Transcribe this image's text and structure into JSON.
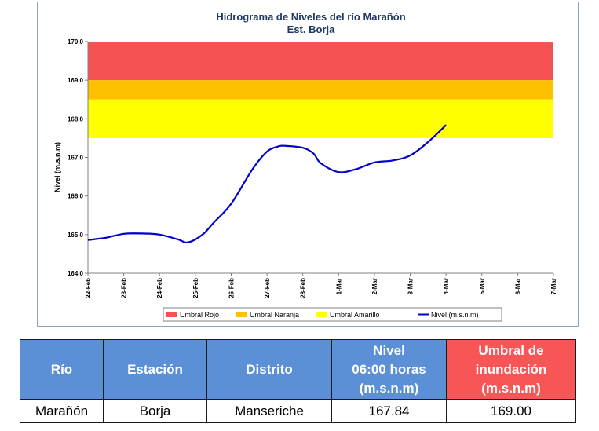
{
  "chart_data": {
    "type": "line",
    "title": "Hidrograma de Niveles del río Marañón",
    "subtitle": "Est. Borja",
    "ylabel": "Nivel (m.s.n.m)",
    "xlabel": "",
    "ylim": [
      164.0,
      170.0
    ],
    "yticks": [
      "164.0",
      "165.0",
      "166.0",
      "167.0",
      "168.0",
      "169.0",
      "170.0"
    ],
    "ytick_values": [
      164,
      165,
      166,
      167,
      168,
      169,
      170
    ],
    "categories": [
      "22-Feb",
      "23-Feb",
      "24-Feb",
      "25-Feb",
      "26-Feb",
      "27-Feb",
      "28-Feb",
      "1-Mar",
      "2-Mar",
      "3-Mar",
      "4-Mar",
      "5-Mar",
      "6-Mar",
      "7-Mar"
    ],
    "bands": [
      {
        "name": "Umbral Rojo",
        "from": 169.0,
        "to": 170.0,
        "color": "#f55353"
      },
      {
        "name": "Umbral Naranja",
        "from": 168.5,
        "to": 169.0,
        "color": "#ffc000"
      },
      {
        "name": "Umbral Amarillo",
        "from": 167.5,
        "to": 168.5,
        "color": "#ffff00"
      }
    ],
    "series": [
      {
        "name": "Nivel (m.s.n.m)",
        "color": "#0000cc",
        "x": [
          0,
          0.5,
          1,
          1.5,
          2,
          2.5,
          2.8,
          3.2,
          3.5,
          4,
          4.6,
          5,
          5.3,
          5.5,
          6,
          6.3,
          6.5,
          7,
          7.5,
          8,
          8.5,
          9,
          9.5,
          10
        ],
        "values": [
          164.86,
          164.92,
          165.02,
          165.03,
          165.0,
          164.88,
          164.8,
          165.0,
          165.3,
          165.8,
          166.7,
          167.15,
          167.28,
          167.3,
          167.25,
          167.1,
          166.85,
          166.62,
          166.7,
          166.87,
          166.92,
          167.05,
          167.4,
          167.84
        ]
      }
    ],
    "legend": [
      "Umbral Rojo",
      "Umbral Naranja",
      "Umbral Amarillo",
      "Nivel (m.s.n.m)"
    ],
    "legend_position": "bottom",
    "grid": false
  },
  "table": {
    "headers": [
      {
        "lines": [
          "Río"
        ]
      },
      {
        "lines": [
          "Estación"
        ]
      },
      {
        "lines": [
          "Distrito"
        ]
      },
      {
        "lines": [
          "Nivel",
          "06:00 horas",
          "(m.s.n.m)"
        ]
      },
      {
        "lines": [
          "Umbral de",
          "inundación",
          "(m.s.n.m)"
        ]
      }
    ],
    "row": [
      "Marañón",
      "Borja",
      "Manseriche",
      "167.84",
      "169.00"
    ]
  }
}
